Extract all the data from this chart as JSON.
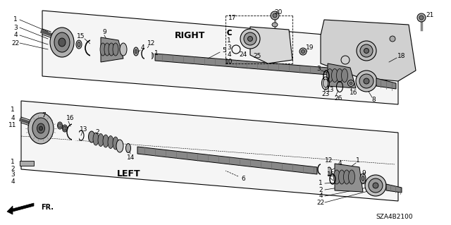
{
  "bg_color": "#ffffff",
  "diagram_code": "SZA4B2100",
  "right_label": "RIGHT",
  "left_label": "LEFT",
  "fr_label": "FR.",
  "line_color": "#000000",
  "gray1": "#c8c8c8",
  "gray2": "#999999",
  "gray3": "#666666",
  "gray4": "#444444",
  "light_gray": "#e8e8e8",
  "mid_gray": "#aaaaaa"
}
